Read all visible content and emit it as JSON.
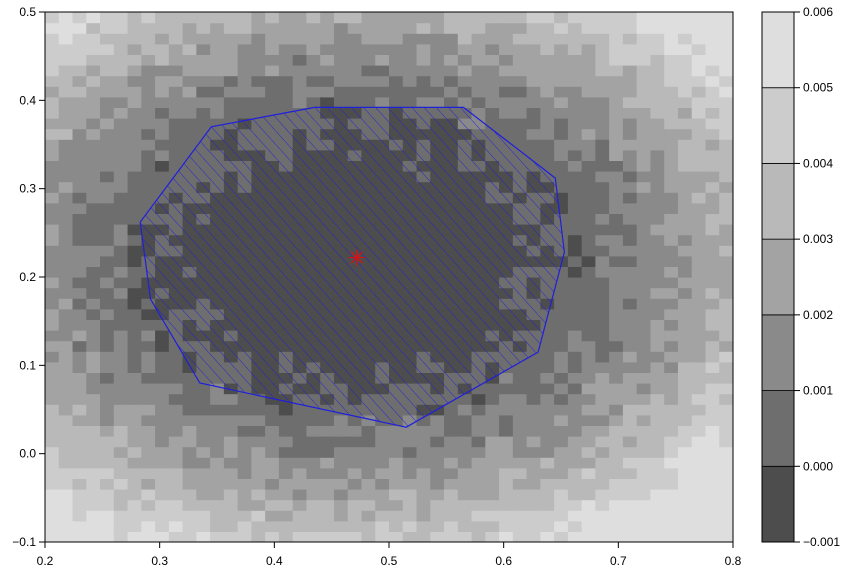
{
  "chart_data": {
    "type": "heatmap",
    "subtype": "filled-contour",
    "title": "",
    "xlabel": "",
    "ylabel": "",
    "xlim": [
      0.2,
      0.8
    ],
    "ylim": [
      -0.1,
      0.5
    ],
    "x_ticks": [
      "0.2",
      "0.3",
      "0.4",
      "0.5",
      "0.6",
      "0.7",
      "0.8"
    ],
    "y_ticks": [
      "−0.1",
      "0.0",
      "0.1",
      "0.2",
      "0.3",
      "0.4",
      "0.5"
    ],
    "x_tick_values": [
      0.2,
      0.3,
      0.4,
      0.5,
      0.6,
      0.7,
      0.8
    ],
    "y_tick_values": [
      -0.1,
      0.0,
      0.1,
      0.2,
      0.3,
      0.4,
      0.5
    ],
    "contour_levels": [
      -0.001,
      0.0,
      0.001,
      0.002,
      0.003,
      0.004,
      0.005,
      0.006
    ],
    "colorbar_ticks": [
      "−0.001",
      "0.000",
      "0.001",
      "0.002",
      "0.003",
      "0.004",
      "0.005",
      "0.006"
    ],
    "level_colors": [
      "#4d4d4d",
      "#6e6e6e",
      "#8a8a8a",
      "#a3a3a3",
      "#b9b9b9",
      "#cccccc",
      "#dedede"
    ],
    "field_minimum": {
      "x": 0.47,
      "y": 0.22
    },
    "region_polygon": [
      [
        0.435,
        0.392
      ],
      [
        0.565,
        0.392
      ],
      [
        0.645,
        0.312
      ],
      [
        0.653,
        0.228
      ],
      [
        0.63,
        0.115
      ],
      [
        0.515,
        0.03
      ],
      [
        0.335,
        0.08
      ],
      [
        0.292,
        0.175
      ],
      [
        0.283,
        0.262
      ],
      [
        0.345,
        0.37
      ]
    ],
    "region_color": "#1f1fdd",
    "center_point": {
      "x": 0.472,
      "y": 0.222,
      "marker": "asterisk",
      "color": "#dd1111"
    }
  }
}
